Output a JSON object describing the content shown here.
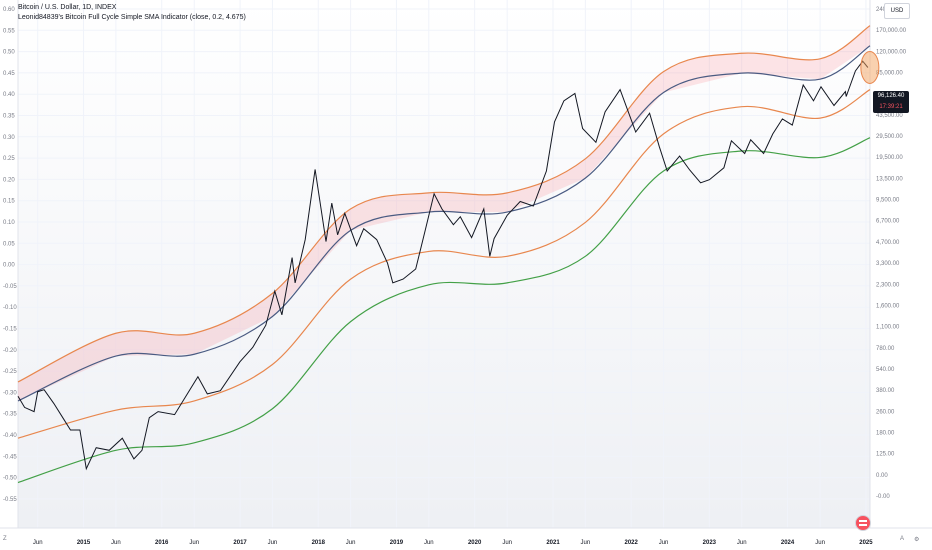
{
  "legend": {
    "symbol": "Bitcoin / U.S. Dollar, 1D, INDEX",
    "indicator": "Leonid84839's Bitcoin Full Cycle Simple SMA Indicator (close, 0.2, 4.675)"
  },
  "currency": "USD",
  "price_tag": {
    "price": "96,126.40",
    "countdown": "17:39:21"
  },
  "corner": {
    "z": "Z",
    "log": "A",
    "gear": "⚙"
  },
  "chart_data": {
    "type": "line",
    "title": "",
    "xlabel": "",
    "ylabel": "",
    "left_axis": {
      "ticks": [
        "0.60",
        "0.55",
        "0.50",
        "0.45",
        "0.40",
        "0.35",
        "0.30",
        "0.25",
        "0.20",
        "0.15",
        "0.10",
        "0.05",
        "0.00",
        "-0.05",
        "-0.10",
        "-0.15",
        "-0.20",
        "-0.25",
        "-0.30",
        "-0.35",
        "-0.40",
        "-0.45",
        "-0.50",
        "-0.55"
      ],
      "ylim": [
        -0.575,
        0.6
      ]
    },
    "right_axis": {
      "scale": "log",
      "ticks": [
        "240,000.00",
        "170,000.00",
        "120,000.00",
        "85,000.00",
        "60,000.00",
        "43,500.00",
        "29,500.00",
        "19,500.00",
        "13,500.00",
        "9,500.00",
        "6,700.00",
        "4,700.00",
        "3,300.00",
        "2,300.00",
        "1,600.00",
        "1,100.00",
        "780.00",
        "540.00",
        "380.00",
        "260.00",
        "180.00",
        "125.00",
        "0.00",
        "-0.00"
      ]
    },
    "x_axis": {
      "ticks": [
        "Jun",
        "2015",
        "Jun",
        "2016",
        "Jun",
        "2017",
        "Jun",
        "2018",
        "Jun",
        "2019",
        "Jun",
        "2020",
        "Jun",
        "2021",
        "Jun",
        "2022",
        "Jun",
        "2023",
        "Jun",
        "2024",
        "Jun",
        "2025"
      ],
      "range": [
        "2014-03-01",
        "2025-01-20"
      ]
    },
    "series": [
      {
        "color": "#131722",
        "x": [
          "2014-03-01",
          "2014-04-01",
          "2014-05-15",
          "2014-06-01",
          "2014-07-01",
          "2014-08-15",
          "2014-10-01",
          "2014-11-01",
          "2014-12-15",
          "2015-01-14",
          "2015-03-01",
          "2015-05-01",
          "2015-07-01",
          "2015-08-24",
          "2015-10-01",
          "2015-11-04",
          "2015-12-15",
          "2016-03-01",
          "2016-06-18",
          "2016-08-01",
          "2016-10-01",
          "2016-12-31",
          "2017-03-01",
          "2017-05-01",
          "2017-06-12",
          "2017-07-15",
          "2017-09-01",
          "2017-09-15",
          "2017-11-01",
          "2017-12-17",
          "2018-02-06",
          "2018-03-05",
          "2018-04-01",
          "2018-05-05",
          "2018-06-29",
          "2018-08-01",
          "2018-10-01",
          "2018-11-20",
          "2018-12-15",
          "2019-02-01",
          "2019-04-01",
          "2019-05-15",
          "2019-06-26",
          "2019-08-01",
          "2019-09-24",
          "2019-10-26",
          "2019-12-18",
          "2020-02-13",
          "2020-03-12",
          "2020-04-01",
          "2020-06-01",
          "2020-08-01",
          "2020-10-01",
          "2020-12-01",
          "2021-01-08",
          "2021-02-21",
          "2021-04-13",
          "2021-05-19",
          "2021-07-20",
          "2021-09-01",
          "2021-11-10",
          "2022-01-22",
          "2022-03-28",
          "2022-05-12",
          "2022-06-18",
          "2022-08-15",
          "2022-10-01",
          "2022-11-21",
          "2023-01-01",
          "2023-03-10",
          "2023-04-14",
          "2023-06-15",
          "2023-07-13",
          "2023-09-11",
          "2023-10-24",
          "2023-12-08",
          "2024-01-23",
          "2024-03-14",
          "2024-05-01",
          "2024-06-05",
          "2024-08-05",
          "2024-09-27",
          "2024-10-01",
          "2024-11-13",
          "2024-12-17",
          "2025-01-10"
        ],
        "values": [
          560,
          470,
          440,
          600,
          620,
          500,
          390,
          330,
          330,
          180,
          250,
          240,
          290,
          210,
          240,
          400,
          440,
          420,
          760,
          580,
          610,
          960,
          1200,
          1700,
          2900,
          2000,
          4900,
          3300,
          6500,
          19500,
          6300,
          11500,
          7000,
          9800,
          5900,
          7700,
          6500,
          4500,
          3300,
          3500,
          4100,
          7500,
          13300,
          10500,
          8200,
          9300,
          6700,
          10500,
          5000,
          6600,
          9500,
          11800,
          11000,
          19000,
          41000,
          57000,
          64000,
          37000,
          29800,
          48000,
          68000,
          35000,
          47000,
          28000,
          19000,
          24000,
          19300,
          15800,
          16600,
          20000,
          30500,
          25000,
          31000,
          25000,
          34000,
          43000,
          39000,
          73000,
          57000,
          71000,
          53000,
          66000,
          61000,
          91000,
          106000,
          96126
        ]
      },
      {
        "name": "",
        "color": "#e8874e",
        "band": "upper-outer",
        "x": [
          "2014-03-01",
          "2015-06-01",
          "2016-06-01",
          "2017-06-01",
          "2018-06-01",
          "2019-06-01",
          "2020-06-01",
          "2021-06-01",
          "2022-06-01",
          "2023-06-01",
          "2024-06-01",
          "2025-01-20"
        ],
        "values": [
          700,
          1500,
          1500,
          2800,
          10500,
          13500,
          13500,
          23000,
          90000,
          120000,
          110000,
          185000
        ]
      },
      {
        "name": "",
        "color": "#4a5b82",
        "band": "upper-inner",
        "x": [
          "2014-03-01",
          "2015-06-01",
          "2016-06-01",
          "2017-06-01",
          "2018-06-01",
          "2019-06-01",
          "2020-06-01",
          "2021-06-01",
          "2022-06-01",
          "2023-06-01",
          "2024-06-01",
          "2025-01-20"
        ],
        "values": [
          520,
          1050,
          1080,
          1950,
          7500,
          10000,
          10000,
          17000,
          65000,
          88000,
          80000,
          135000
        ]
      },
      {
        "name": "",
        "color": "#e8874e",
        "band": "middle",
        "x": [
          "2014-03-01",
          "2015-06-01",
          "2016-06-01",
          "2017-06-01",
          "2018-06-01",
          "2019-06-01",
          "2020-06-01",
          "2021-06-01",
          "2022-06-01",
          "2023-06-01",
          "2024-06-01",
          "2025-01-20"
        ],
        "values": [
          290,
          450,
          520,
          920,
          3500,
          5400,
          5000,
          8500,
          34000,
          52000,
          43500,
          68000
        ]
      },
      {
        "name": "",
        "color": "#43a047",
        "band": "lower",
        "x": [
          "2014-03-01",
          "2015-06-01",
          "2016-06-01",
          "2017-06-01",
          "2018-06-01",
          "2019-06-01",
          "2020-06-01",
          "2021-06-01",
          "2022-06-01",
          "2023-06-01",
          "2024-06-01",
          "2025-01-20"
        ],
        "values": [
          145,
          240,
          270,
          460,
          1800,
          3200,
          3300,
          5000,
          19000,
          26000,
          23500,
          32000
        ]
      }
    ]
  }
}
